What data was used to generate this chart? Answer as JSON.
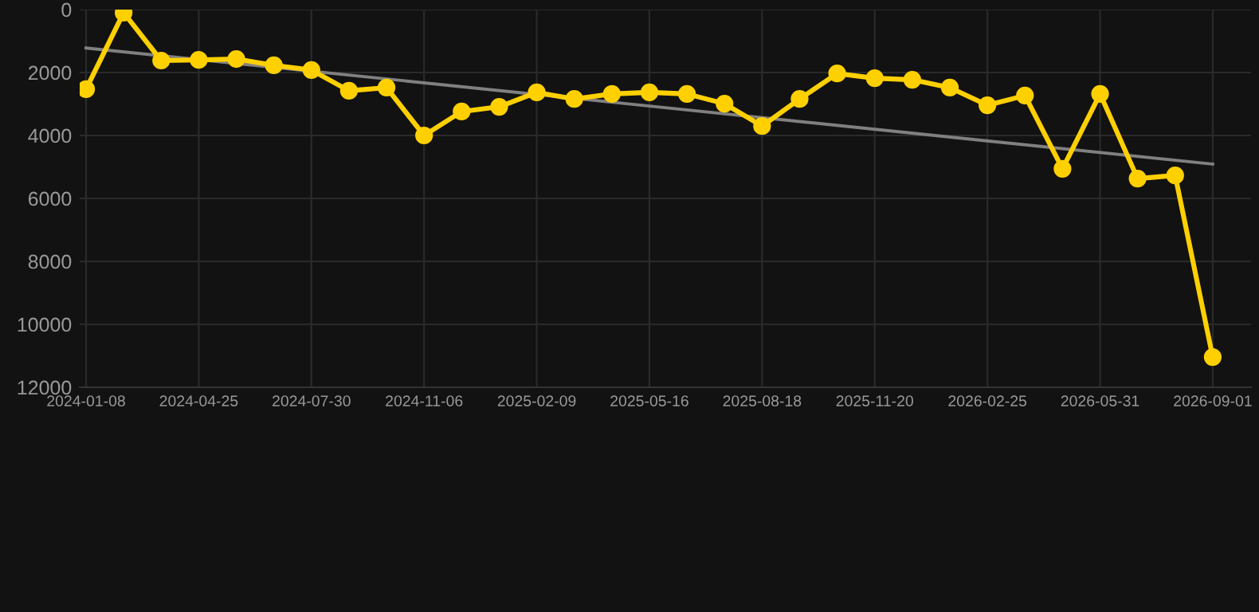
{
  "chart_data": {
    "type": "line",
    "categories": [
      "2024-01-08",
      null,
      null,
      "2024-04-25",
      null,
      null,
      "2024-07-30",
      null,
      null,
      "2024-11-06",
      null,
      null,
      "2025-02-09",
      null,
      null,
      "2025-05-16",
      null,
      null,
      "2025-08-18",
      null,
      null,
      "2025-11-20",
      null,
      null,
      "2026-02-25",
      null,
      null,
      "2026-05-31",
      null,
      null,
      "2026-09-01"
    ],
    "series": [
      {
        "color": "#ffd000",
        "marker": "circle",
        "values": [
          2530,
          100,
          1620,
          1600,
          1570,
          1770,
          1920,
          2580,
          2480,
          4000,
          3240,
          3090,
          2630,
          2840,
          2680,
          2630,
          2680,
          2990,
          3700,
          2840,
          2030,
          2180,
          2230,
          2480,
          3040,
          2730,
          5060,
          2680,
          5370,
          5270,
          11040
        ]
      },
      {
        "type": "line",
        "color": "#808080",
        "marker": "none",
        "values": [
          1220,
          null,
          null,
          null,
          null,
          null,
          null,
          null,
          null,
          null,
          null,
          null,
          null,
          null,
          null,
          null,
          null,
          null,
          null,
          null,
          null,
          null,
          null,
          null,
          null,
          null,
          null,
          null,
          null,
          null,
          4910
        ]
      }
    ],
    "ylim": [
      12000,
      0
    ],
    "yticks": [
      0,
      2000,
      4000,
      6000,
      8000,
      10000,
      12000
    ],
    "grid": true,
    "line_style": "solid"
  }
}
